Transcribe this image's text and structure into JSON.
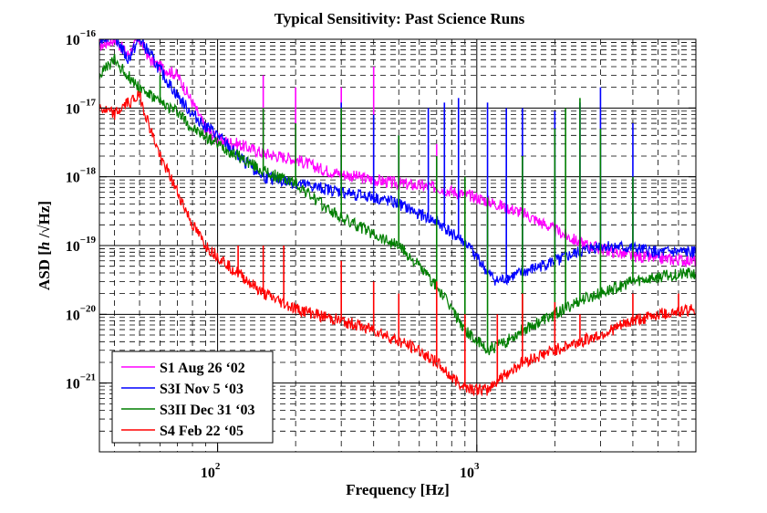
{
  "chart_data": {
    "type": "line",
    "title": "Typical Sensitivity: Past Science Runs",
    "xlabel": "Frequency  [Hz]",
    "ylabel_parts": [
      "ASD [",
      "h",
      " /√Hz]"
    ],
    "xscale": "log",
    "yscale": "log",
    "xlim": [
      35,
      7000
    ],
    "ylim": [
      1e-22,
      1e-16
    ],
    "x_ticks": [
      {
        "base": "10",
        "exp": "2",
        "value": 100
      },
      {
        "base": "10",
        "exp": "3",
        "value": 1000
      }
    ],
    "y_ticks": [
      {
        "base": "10",
        "exp": "−16",
        "value": 1e-16
      },
      {
        "base": "10",
        "exp": "−17",
        "value": 1e-17
      },
      {
        "base": "10",
        "exp": "−18",
        "value": 1e-18
      },
      {
        "base": "10",
        "exp": "−19",
        "value": 1e-19
      },
      {
        "base": "10",
        "exp": "−20",
        "value": 1e-20
      },
      {
        "base": "10",
        "exp": "−21",
        "value": 1e-21
      }
    ],
    "grid": true,
    "legend_position": "bottom-left",
    "series": [
      {
        "name": "S1 Aug 26 ‘02",
        "color": "#ff00ff",
        "points": [
          [
            35,
            8e-17
          ],
          [
            40,
            1e-16
          ],
          [
            45,
            6e-17
          ],
          [
            50,
            1e-16
          ],
          [
            55,
            5e-17
          ],
          [
            60,
            4e-17
          ],
          [
            70,
            3e-17
          ],
          [
            80,
            1.2e-17
          ],
          [
            90,
            5e-18
          ],
          [
            100,
            3.5e-18
          ],
          [
            120,
            3e-18
          ],
          [
            150,
            2.2e-18
          ],
          [
            200,
            1.8e-18
          ],
          [
            250,
            1.3e-18
          ],
          [
            300,
            1.1e-18
          ],
          [
            400,
            9e-19
          ],
          [
            500,
            8e-19
          ],
          [
            700,
            7e-19
          ],
          [
            1000,
            5e-19
          ],
          [
            1500,
            3e-19
          ],
          [
            2000,
            1.7e-19
          ],
          [
            2500,
            1.1e-19
          ],
          [
            3000,
            9e-20
          ],
          [
            4000,
            7e-20
          ],
          [
            5000,
            6.5e-20
          ],
          [
            7000,
            6e-20
          ]
        ],
        "lines": [
          [
            150,
            3e-17
          ],
          [
            200,
            2e-17
          ],
          [
            300,
            2e-17
          ],
          [
            400,
            4e-17
          ],
          [
            500,
            2e-18
          ],
          [
            700,
            3e-18
          ]
        ]
      },
      {
        "name": "S3I Nov 5 ‘03",
        "color": "#0000ff",
        "points": [
          [
            35,
            1e-16
          ],
          [
            40,
            1.2e-16
          ],
          [
            45,
            5e-17
          ],
          [
            50,
            1e-16
          ],
          [
            55,
            6e-17
          ],
          [
            60,
            3.5e-17
          ],
          [
            70,
            1.5e-17
          ],
          [
            80,
            8e-18
          ],
          [
            100,
            4e-18
          ],
          [
            120,
            2e-18
          ],
          [
            150,
            1e-18
          ],
          [
            200,
            8e-19
          ],
          [
            300,
            6e-19
          ],
          [
            400,
            5e-19
          ],
          [
            500,
            4e-19
          ],
          [
            700,
            2.2e-19
          ],
          [
            900,
            1.1e-19
          ],
          [
            1000,
            7e-20
          ],
          [
            1100,
            4e-20
          ],
          [
            1200,
            3e-20
          ],
          [
            1500,
            4e-20
          ],
          [
            2000,
            6e-20
          ],
          [
            2500,
            8e-20
          ],
          [
            3000,
            1e-19
          ],
          [
            4000,
            9e-20
          ],
          [
            5000,
            8e-20
          ],
          [
            7000,
            8e-20
          ]
        ],
        "lines": [
          [
            300,
            1.2e-17
          ],
          [
            400,
            8e-18
          ],
          [
            500,
            4e-18
          ],
          [
            650,
            1e-17
          ],
          [
            750,
            1.2e-17
          ],
          [
            850,
            1.4e-17
          ],
          [
            1100,
            1.2e-17
          ],
          [
            1300,
            1e-17
          ],
          [
            1500,
            1e-17
          ],
          [
            2000,
            9e-18
          ],
          [
            2500,
            1.2e-17
          ],
          [
            3000,
            2e-17
          ],
          [
            4000,
            6e-18
          ]
        ]
      },
      {
        "name": "S3II Dec 31 ‘03",
        "color": "#007f00",
        "points": [
          [
            35,
            3e-17
          ],
          [
            40,
            5e-17
          ],
          [
            45,
            3e-17
          ],
          [
            50,
            2e-17
          ],
          [
            60,
            1.2e-17
          ],
          [
            70,
            9e-18
          ],
          [
            80,
            5e-18
          ],
          [
            100,
            3e-18
          ],
          [
            120,
            2e-18
          ],
          [
            150,
            1.2e-18
          ],
          [
            200,
            8e-19
          ],
          [
            250,
            4e-19
          ],
          [
            300,
            2.5e-19
          ],
          [
            400,
            1.5e-19
          ],
          [
            500,
            1e-19
          ],
          [
            600,
            5e-20
          ],
          [
            700,
            2.5e-20
          ],
          [
            800,
            1.2e-20
          ],
          [
            900,
            6e-21
          ],
          [
            1000,
            4e-21
          ],
          [
            1100,
            3e-21
          ],
          [
            1300,
            4e-21
          ],
          [
            1500,
            6e-21
          ],
          [
            2000,
            1e-20
          ],
          [
            2500,
            1.6e-20
          ],
          [
            3000,
            2e-20
          ],
          [
            4000,
            3e-20
          ],
          [
            5000,
            3.5e-20
          ],
          [
            7000,
            4e-20
          ]
        ],
        "lines": [
          [
            60,
            3e-17
          ],
          [
            150,
            1e-17
          ],
          [
            200,
            6e-18
          ],
          [
            300,
            1e-17
          ],
          [
            500,
            4e-18
          ],
          [
            700,
            2e-18
          ],
          [
            900,
            1e-18
          ],
          [
            1100,
            5e-19
          ],
          [
            1500,
            2e-18
          ],
          [
            2000,
            5e-18
          ],
          [
            2200,
            1e-17
          ],
          [
            2500,
            1.4e-17
          ],
          [
            3000,
            5e-18
          ],
          [
            4000,
            1e-18
          ]
        ]
      },
      {
        "name": "S4 Feb 22 ‘05",
        "color": "#ff0000",
        "points": [
          [
            35,
            1e-17
          ],
          [
            40,
            8e-18
          ],
          [
            45,
            1.2e-17
          ],
          [
            50,
            1.5e-17
          ],
          [
            55,
            5e-18
          ],
          [
            60,
            2e-18
          ],
          [
            70,
            6e-19
          ],
          [
            80,
            2e-19
          ],
          [
            90,
            1e-19
          ],
          [
            100,
            7e-20
          ],
          [
            120,
            4e-20
          ],
          [
            150,
            2e-20
          ],
          [
            200,
            1.2e-20
          ],
          [
            300,
            8e-21
          ],
          [
            400,
            6e-21
          ],
          [
            500,
            4e-21
          ],
          [
            600,
            3e-21
          ],
          [
            700,
            2e-21
          ],
          [
            800,
            1.2e-21
          ],
          [
            900,
            9e-22
          ],
          [
            1000,
            8e-22
          ],
          [
            1100,
            8e-22
          ],
          [
            1200,
            1.1e-21
          ],
          [
            1500,
            2e-21
          ],
          [
            2000,
            3e-21
          ],
          [
            2500,
            4e-21
          ],
          [
            3000,
            5e-21
          ],
          [
            4000,
            8e-21
          ],
          [
            5000,
            1e-20
          ],
          [
            7000,
            1.2e-20
          ]
        ],
        "lines": [
          [
            120,
            1e-19
          ],
          [
            150,
            1e-19
          ],
          [
            180,
            1e-19
          ],
          [
            300,
            6e-20
          ],
          [
            400,
            3e-20
          ],
          [
            500,
            2e-20
          ],
          [
            700,
            3e-20
          ],
          [
            900,
            1e-20
          ],
          [
            1200,
            1e-20
          ],
          [
            1500,
            2e-20
          ],
          [
            2000,
            1.5e-20
          ],
          [
            2500,
            1e-20
          ],
          [
            4000,
            2e-20
          ],
          [
            6000,
            2e-20
          ]
        ]
      }
    ]
  }
}
